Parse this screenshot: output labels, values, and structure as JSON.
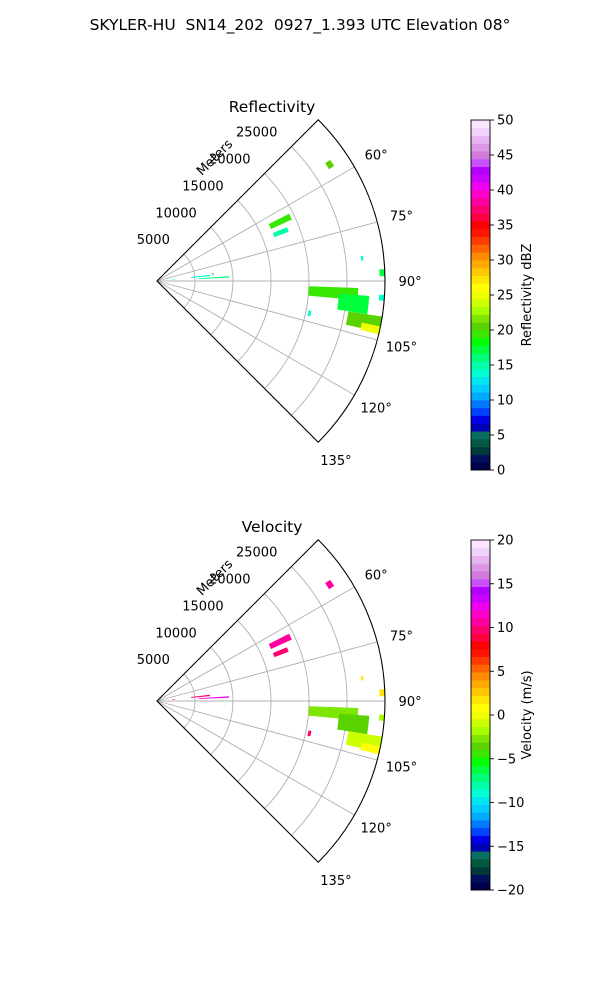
{
  "figure": {
    "title": "SKYLER-HU  SN14_202  0927_1.393 UTC Elevation 08°"
  },
  "colors": {
    "grid": "#b0b0b0",
    "axis": "#000000"
  },
  "chart_data": [
    {
      "type": "polar-sector-heatmap",
      "title": "Reflectivity",
      "radial_label": "Meters",
      "rlim": [
        0,
        30000
      ],
      "radial_ticks": [
        5000,
        10000,
        15000,
        20000,
        25000
      ],
      "radial_tick_labels": [
        "5000",
        "10000",
        "15000",
        "20000",
        "25000"
      ],
      "theta_range_deg": [
        45,
        135
      ],
      "angle_ticks_deg": [
        60,
        75,
        90,
        105,
        120,
        135
      ],
      "angle_tick_labels": [
        "60°",
        "75°",
        "90°",
        "105°",
        "120°",
        "135°"
      ],
      "grid": true,
      "colorbar": {
        "label": "Reflectivity dBZ",
        "range": [
          0,
          50
        ],
        "ticks": [
          0,
          5,
          10,
          15,
          20,
          25,
          30,
          35,
          40,
          45,
          50
        ],
        "tick_labels": [
          "0",
          "5",
          "10",
          "15",
          "20",
          "25",
          "30",
          "35",
          "40",
          "45",
          "50"
        ],
        "colors": [
          "#00004a",
          "#00105c",
          "#003a3a",
          "#005a40",
          "#0a6e60",
          "#0000b4",
          "#0000e6",
          "#0040ff",
          "#0078ff",
          "#00aaff",
          "#00ccff",
          "#00e6f0",
          "#00ffd2",
          "#00ffa8",
          "#00ff78",
          "#00ff3c",
          "#00ff00",
          "#38e800",
          "#5ad200",
          "#7ee600",
          "#a8ff00",
          "#ccff00",
          "#f0ff00",
          "#ffff00",
          "#ffe600",
          "#ffc800",
          "#ffaa00",
          "#ff8c00",
          "#ff6400",
          "#ff3c00",
          "#ff1400",
          "#ff0000",
          "#ff0040",
          "#ff0070",
          "#ff00a0",
          "#ff00c8",
          "#ee00ee",
          "#cc00ff",
          "#b400ff",
          "#c850ff",
          "#d27adc",
          "#dc96e6",
          "#e6b4f0",
          "#f0d2fa",
          "#fae6ff"
        ]
      },
      "data": [
        {
          "range_m": [
            2000,
            2400
          ],
          "az_deg": [
            84.5,
            86
          ],
          "value": 14
        },
        {
          "range_m": [
            4500,
            7000
          ],
          "az_deg": [
            83.3,
            84.7
          ],
          "value": 14
        },
        {
          "range_m": [
            7300,
            7500
          ],
          "az_deg": [
            82.5,
            83.3
          ],
          "value": 2
        },
        {
          "range_m": [
            5500,
            9500
          ],
          "az_deg": [
            86.2,
            87.3
          ],
          "value": 16
        },
        {
          "range_m": [
            16500,
            19500
          ],
          "az_deg": [
            63,
            65.5
          ],
          "value": 19
        },
        {
          "range_m": [
            16500,
            18500
          ],
          "az_deg": [
            67.5,
            69.5
          ],
          "value": 15
        },
        {
          "range_m": [
            27000,
            27800
          ],
          "az_deg": [
            55,
            57
          ],
          "value": 21
        },
        {
          "range_m": [
            27000,
            27300
          ],
          "az_deg": [
            83,
            84.3
          ],
          "value": 14
        },
        {
          "range_m": [
            29300,
            30000
          ],
          "az_deg": [
            87,
            88.8
          ],
          "value": 17
        },
        {
          "range_m": [
            20000,
            26500
          ],
          "az_deg": [
            92,
            95.5
          ],
          "value": 19
        },
        {
          "range_m": [
            24000,
            28000
          ],
          "az_deg": [
            94,
            99
          ],
          "value": 17
        },
        {
          "range_m": [
            25500,
            30000
          ],
          "az_deg": [
            99,
            103
          ],
          "value": 20
        },
        {
          "range_m": [
            27500,
            30000
          ],
          "az_deg": [
            101.5,
            103.5
          ],
          "value": 25
        },
        {
          "range_m": [
            20300,
            20700
          ],
          "az_deg": [
            101,
            103
          ],
          "value": 14
        },
        {
          "range_m": [
            29300,
            30000
          ],
          "az_deg": [
            93.5,
            95
          ],
          "value": 14
        }
      ]
    },
    {
      "type": "polar-sector-heatmap",
      "title": "Velocity",
      "radial_label": "Meters",
      "rlim": [
        0,
        30000
      ],
      "radial_ticks": [
        5000,
        10000,
        15000,
        20000,
        25000
      ],
      "radial_tick_labels": [
        "5000",
        "10000",
        "15000",
        "20000",
        "25000"
      ],
      "theta_range_deg": [
        45,
        135
      ],
      "angle_ticks_deg": [
        60,
        75,
        90,
        105,
        120,
        135
      ],
      "angle_tick_labels": [
        "60°",
        "75°",
        "90°",
        "105°",
        "120°",
        "135°"
      ],
      "grid": true,
      "colorbar": {
        "label": "Velocity (m/s)",
        "range": [
          -20,
          20
        ],
        "ticks": [
          -20,
          -15,
          -10,
          -5,
          0,
          5,
          10,
          15,
          20
        ],
        "tick_labels": [
          "−20",
          "−15",
          "−10",
          "−5",
          "0",
          "5",
          "10",
          "15",
          "20"
        ],
        "colors": [
          "#00004a",
          "#00105c",
          "#003a3a",
          "#005a40",
          "#0a6e60",
          "#0000b4",
          "#0000e6",
          "#0040ff",
          "#0078ff",
          "#00aaff",
          "#00ccff",
          "#00e6f0",
          "#00ffd2",
          "#00ffa8",
          "#00ff78",
          "#00ff3c",
          "#00ff00",
          "#38e800",
          "#5ad200",
          "#7ee600",
          "#a8ff00",
          "#ccff00",
          "#f0ff00",
          "#ffff00",
          "#ffe600",
          "#ffc800",
          "#ffaa00",
          "#ff8c00",
          "#ff6400",
          "#ff3c00",
          "#ff1400",
          "#ff0000",
          "#ff0040",
          "#ff0070",
          "#ff00a0",
          "#ff00c8",
          "#ee00ee",
          "#cc00ff",
          "#b400ff",
          "#c850ff",
          "#d27adc",
          "#dc96e6",
          "#e6b4f0",
          "#f0d2fa",
          "#fae6ff"
        ]
      },
      "data": [
        {
          "range_m": [
            2000,
            2400
          ],
          "az_deg": [
            84.5,
            86
          ],
          "value": 12
        },
        {
          "range_m": [
            4500,
            7000
          ],
          "az_deg": [
            83.3,
            84.7
          ],
          "value": 10
        },
        {
          "range_m": [
            5500,
            9500
          ],
          "az_deg": [
            86.2,
            87.3
          ],
          "value": 12
        },
        {
          "range_m": [
            16500,
            19500
          ],
          "az_deg": [
            63,
            65.5
          ],
          "value": 11
        },
        {
          "range_m": [
            16500,
            18500
          ],
          "az_deg": [
            67.5,
            69.5
          ],
          "value": 10
        },
        {
          "range_m": [
            27000,
            27800
          ],
          "az_deg": [
            55,
            57
          ],
          "value": 11
        },
        {
          "range_m": [
            27000,
            27300
          ],
          "az_deg": [
            83,
            84.3
          ],
          "value": 2
        },
        {
          "range_m": [
            29300,
            30000
          ],
          "az_deg": [
            87,
            88.8
          ],
          "value": 2
        },
        {
          "range_m": [
            20000,
            26500
          ],
          "az_deg": [
            92,
            95.5
          ],
          "value": -3
        },
        {
          "range_m": [
            24000,
            28000
          ],
          "az_deg": [
            94,
            99
          ],
          "value": -4
        },
        {
          "range_m": [
            25500,
            30000
          ],
          "az_deg": [
            99,
            103
          ],
          "value": -1
        },
        {
          "range_m": [
            27500,
            30000
          ],
          "az_deg": [
            101.5,
            103.5
          ],
          "value": 1
        },
        {
          "range_m": [
            20300,
            20700
          ],
          "az_deg": [
            101,
            103
          ],
          "value": 10
        },
        {
          "range_m": [
            29300,
            30000
          ],
          "az_deg": [
            93.5,
            95
          ],
          "value": -2
        }
      ]
    }
  ]
}
